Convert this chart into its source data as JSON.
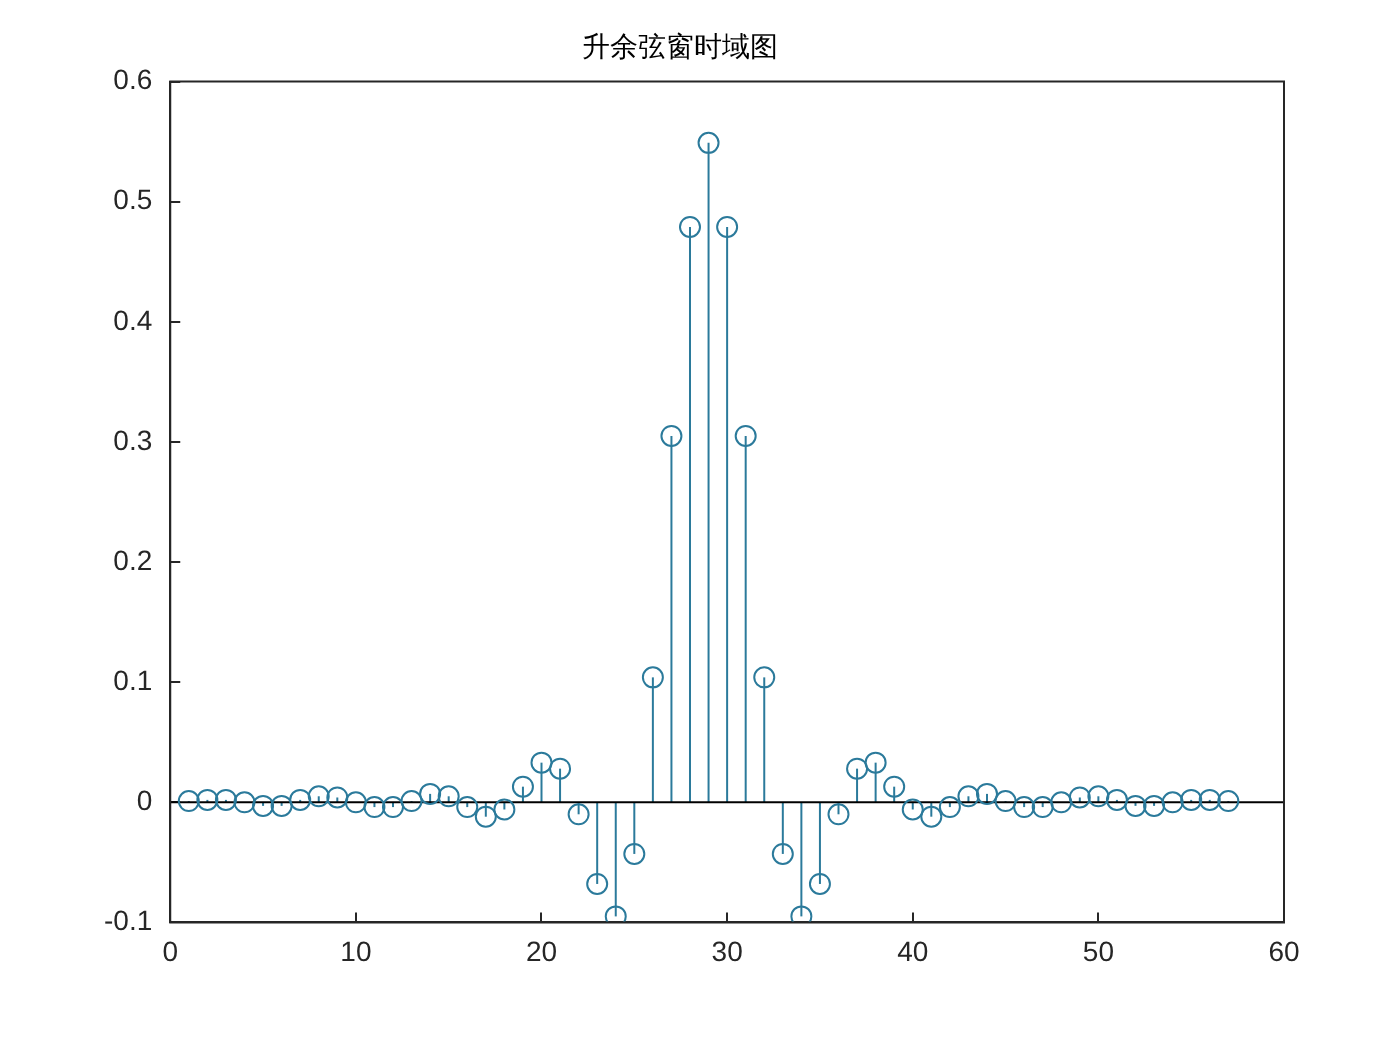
{
  "chart_data": {
    "type": "lollipop",
    "title": "升余弦窗时域图",
    "x": [
      1,
      2,
      3,
      4,
      5,
      6,
      7,
      8,
      9,
      10,
      11,
      12,
      13,
      14,
      15,
      16,
      17,
      18,
      19,
      20,
      21,
      22,
      23,
      24,
      25,
      26,
      27,
      28,
      29,
      30,
      31,
      32,
      33,
      34,
      35,
      36,
      37,
      38,
      39,
      40,
      41,
      42,
      43,
      44,
      45,
      46,
      47,
      48,
      49,
      50,
      51,
      52,
      53,
      54,
      55,
      56,
      57
    ],
    "values": [
      0.001,
      0.002,
      0.002,
      0,
      -0.003,
      -0.003,
      0.002,
      0.005,
      0.004,
      0,
      -0.004,
      -0.004,
      0.001,
      0.007,
      0.005,
      -0.004,
      -0.012,
      -0.006,
      0.013,
      0.033,
      0.028,
      -0.01,
      -0.068,
      -0.095,
      -0.043,
      0.104,
      0.305,
      0.479,
      0.549,
      0.479,
      0.305,
      0.104,
      -0.043,
      -0.095,
      -0.068,
      -0.01,
      0.028,
      0.033,
      0.013,
      -0.006,
      -0.012,
      -0.004,
      0.005,
      0.007,
      0.001,
      -0.004,
      -0.004,
      0,
      0.004,
      0.005,
      0.002,
      -0.003,
      -0.003,
      0,
      0.002,
      0.002,
      0.001
    ],
    "color": "#2b7a9b",
    "marker": "circle",
    "xlim": [
      0,
      60
    ],
    "xticks": [
      0,
      10,
      20,
      30,
      40,
      50,
      60
    ],
    "ylim": [
      -0.1,
      0.6
    ],
    "yticks": [
      -0.1,
      0,
      0.1,
      0.2,
      0.3,
      0.4,
      0.5,
      0.6
    ]
  }
}
